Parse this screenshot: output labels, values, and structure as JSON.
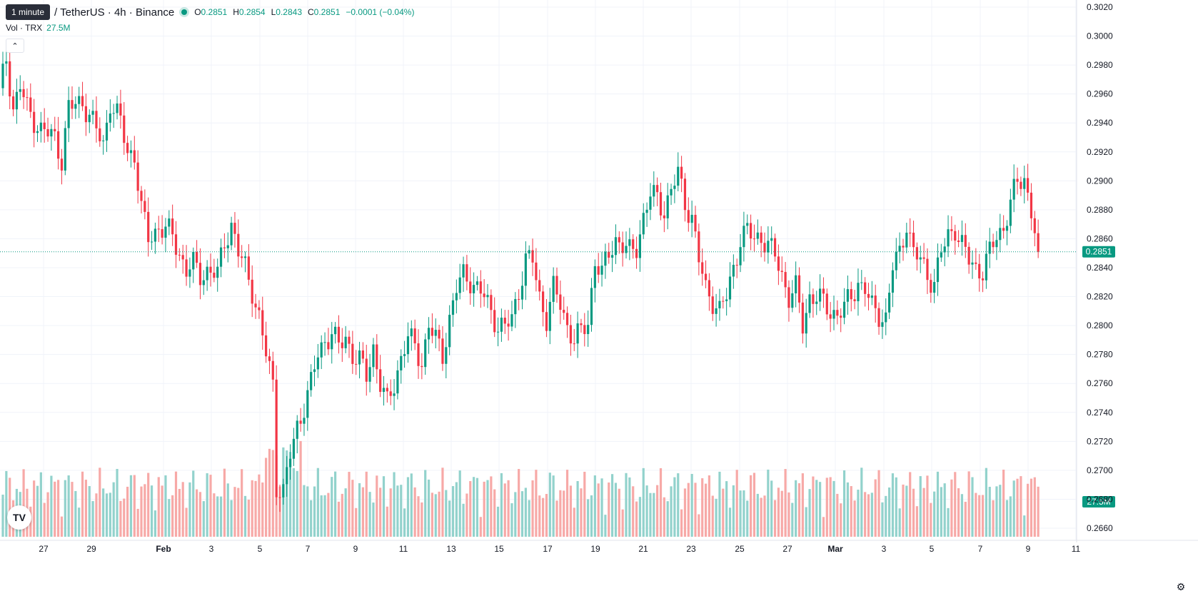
{
  "tooltip": "1 minute",
  "symbol": "/ TetherUS · 4h · Binance",
  "ohlc": {
    "o_label": "O",
    "o": "0.2851",
    "h_label": "H",
    "h": "0.2854",
    "l_label": "L",
    "l": "0.2843",
    "c_label": "C",
    "c": "0.2851",
    "change": "−0.0001 (−0.04%)"
  },
  "volume": {
    "label": "Vol · TRX",
    "value": "27.5M"
  },
  "icons": {
    "collapse": "chevron-up-icon",
    "logo": "tradingview-logo-icon",
    "settings": "gear-icon"
  },
  "colors": {
    "up": "#089981",
    "down": "#f23645",
    "vol_up": "#92d2cc",
    "vol_down": "#f7a9a7",
    "grid": "#f0f3fa"
  },
  "chart_data": {
    "type": "candlestick",
    "ylim": [
      0.2652,
      0.3025
    ],
    "price_ticks": [
      "0.3020",
      "0.3000",
      "0.2980",
      "0.2960",
      "0.2940",
      "0.2920",
      "0.2900",
      "0.2880",
      "0.2860",
      "0.2840",
      "0.2820",
      "0.2800",
      "0.2780",
      "0.2760",
      "0.2740",
      "0.2720",
      "0.2700",
      "0.2680",
      "0.2660"
    ],
    "x_ticks": [
      "27",
      "29",
      "Feb",
      "3",
      "5",
      "7",
      "9",
      "11",
      "13",
      "15",
      "17",
      "19",
      "21",
      "23",
      "25",
      "27",
      "Mar",
      "3",
      "5",
      "7",
      "9",
      "11"
    ],
    "current_price": "0.2851",
    "current_volume": "27.5M",
    "keypoints": [
      [
        0,
        0.296
      ],
      [
        2,
        0.2985
      ],
      [
        4,
        0.295
      ],
      [
        6,
        0.2965
      ],
      [
        8,
        0.295
      ],
      [
        12,
        0.2935
      ],
      [
        16,
        0.293
      ],
      [
        18,
        0.2915
      ],
      [
        20,
        0.295
      ],
      [
        24,
        0.2955
      ],
      [
        27,
        0.294
      ],
      [
        30,
        0.2925
      ],
      [
        32,
        0.2955
      ],
      [
        35,
        0.294
      ],
      [
        37,
        0.292
      ],
      [
        39,
        0.2918
      ],
      [
        41,
        0.288
      ],
      [
        43,
        0.286
      ],
      [
        46,
        0.2868
      ],
      [
        48,
        0.2866
      ],
      [
        50,
        0.2862
      ],
      [
        52,
        0.285
      ],
      [
        54,
        0.2838
      ],
      [
        56,
        0.2842
      ],
      [
        58,
        0.2835
      ],
      [
        60,
        0.2838
      ],
      [
        63,
        0.2835
      ],
      [
        65,
        0.2858
      ],
      [
        67,
        0.287
      ],
      [
        69,
        0.285
      ],
      [
        71,
        0.284
      ],
      [
        73,
        0.2825
      ],
      [
        75,
        0.2805
      ],
      [
        77,
        0.278
      ],
      [
        79,
        0.276
      ],
      [
        80,
        0.269
      ],
      [
        82,
        0.2685
      ],
      [
        84,
        0.271
      ],
      [
        86,
        0.273
      ],
      [
        88,
        0.2745
      ],
      [
        90,
        0.276
      ],
      [
        92,
        0.278
      ],
      [
        94,
        0.279
      ],
      [
        96,
        0.2795
      ],
      [
        98,
        0.2785
      ],
      [
        100,
        0.2792
      ],
      [
        102,
        0.278
      ],
      [
        104,
        0.2775
      ],
      [
        106,
        0.2765
      ],
      [
        108,
        0.2785
      ],
      [
        110,
        0.276
      ],
      [
        112,
        0.2745
      ],
      [
        114,
        0.276
      ],
      [
        116,
        0.2778
      ],
      [
        118,
        0.2792
      ],
      [
        120,
        0.2785
      ],
      [
        122,
        0.2775
      ],
      [
        124,
        0.28
      ],
      [
        126,
        0.279
      ],
      [
        128,
        0.278
      ],
      [
        130,
        0.2805
      ],
      [
        132,
        0.2825
      ],
      [
        134,
        0.2835
      ],
      [
        136,
        0.2832
      ],
      [
        138,
        0.2825
      ],
      [
        140,
        0.282
      ],
      [
        142,
        0.281
      ],
      [
        144,
        0.28
      ],
      [
        146,
        0.2798
      ],
      [
        148,
        0.2805
      ],
      [
        150,
        0.2825
      ],
      [
        152,
        0.2845
      ],
      [
        154,
        0.2845
      ],
      [
        156,
        0.282
      ],
      [
        158,
        0.2805
      ],
      [
        160,
        0.2825
      ],
      [
        162,
        0.2815
      ],
      [
        164,
        0.28
      ],
      [
        166,
        0.279
      ],
      [
        168,
        0.2795
      ],
      [
        170,
        0.2803
      ],
      [
        172,
        0.2845
      ],
      [
        174,
        0.2835
      ],
      [
        176,
        0.285
      ],
      [
        178,
        0.286
      ],
      [
        180,
        0.2855
      ],
      [
        182,
        0.285
      ],
      [
        184,
        0.2855
      ],
      [
        186,
        0.2875
      ],
      [
        188,
        0.289
      ],
      [
        190,
        0.2888
      ],
      [
        192,
        0.288
      ],
      [
        194,
        0.2893
      ],
      [
        196,
        0.2905
      ],
      [
        198,
        0.2885
      ],
      [
        200,
        0.2875
      ],
      [
        202,
        0.2845
      ],
      [
        204,
        0.2825
      ],
      [
        206,
        0.2818
      ],
      [
        208,
        0.281
      ],
      [
        210,
        0.282
      ],
      [
        212,
        0.284
      ],
      [
        214,
        0.286
      ],
      [
        216,
        0.2865
      ],
      [
        218,
        0.286
      ],
      [
        220,
        0.2862
      ],
      [
        222,
        0.2855
      ],
      [
        224,
        0.2848
      ],
      [
        226,
        0.2835
      ],
      [
        228,
        0.282
      ],
      [
        230,
        0.2825
      ],
      [
        232,
        0.28
      ],
      [
        234,
        0.282
      ],
      [
        236,
        0.282
      ],
      [
        238,
        0.2815
      ],
      [
        240,
        0.281
      ],
      [
        242,
        0.2808
      ],
      [
        244,
        0.2812
      ],
      [
        246,
        0.282
      ],
      [
        248,
        0.283
      ],
      [
        250,
        0.2825
      ],
      [
        252,
        0.2812
      ],
      [
        254,
        0.2808
      ],
      [
        256,
        0.2805
      ],
      [
        258,
        0.284
      ],
      [
        260,
        0.285
      ],
      [
        262,
        0.2872
      ],
      [
        264,
        0.285
      ],
      [
        266,
        0.2845
      ],
      [
        268,
        0.2835
      ],
      [
        270,
        0.283
      ],
      [
        272,
        0.285
      ],
      [
        274,
        0.2862
      ],
      [
        276,
        0.2868
      ],
      [
        278,
        0.2855
      ],
      [
        280,
        0.2845
      ],
      [
        282,
        0.284
      ],
      [
        284,
        0.2838
      ],
      [
        286,
        0.285
      ],
      [
        288,
        0.2862
      ],
      [
        290,
        0.2868
      ],
      [
        292,
        0.2885
      ],
      [
        294,
        0.2898
      ],
      [
        296,
        0.2902
      ],
      [
        298,
        0.288
      ],
      [
        300,
        0.2851
      ]
    ]
  }
}
